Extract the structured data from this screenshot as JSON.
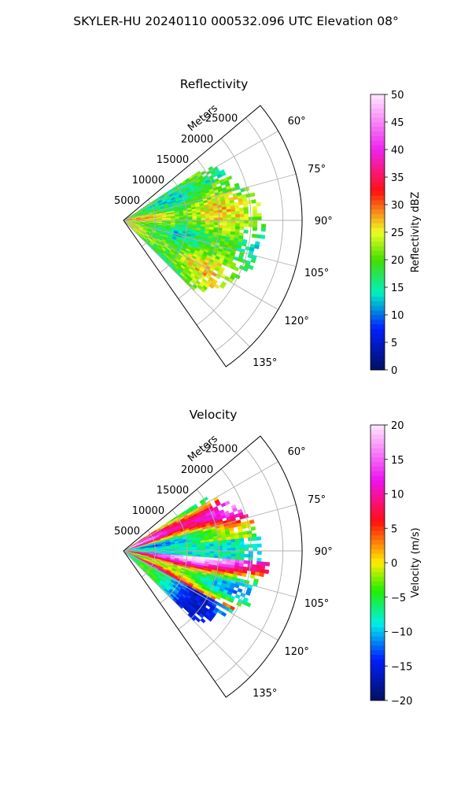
{
  "figure": {
    "suptitle": "SKYLER-HU  20240110  000532.096 UTC Elevation 08°"
  },
  "chart_data": [
    {
      "type": "heatmap",
      "projection": "polar sector (PPI)",
      "title": "Reflectivity",
      "range_axis": {
        "label": "Meters",
        "ticks": [
          5000,
          10000,
          15000,
          20000,
          25000
        ],
        "tick_labels": [
          "5000",
          "10000",
          "15000",
          "20000",
          "25000"
        ],
        "max": 28000
      },
      "azimuth_axis": {
        "range_deg": [
          50,
          145
        ],
        "ticks_deg": [
          60,
          75,
          90,
          105,
          120,
          135
        ],
        "tick_labels": [
          "60°",
          "75°",
          "90°",
          "105°",
          "120°",
          "135°"
        ]
      },
      "grid": true,
      "colorbar": {
        "label": "Reflectivity dBZ",
        "range": [
          0,
          50
        ],
        "ticks": [
          0,
          5,
          10,
          15,
          20,
          25,
          30,
          35,
          40,
          45,
          50
        ],
        "tick_labels": [
          "0",
          "5",
          "10",
          "15",
          "20",
          "25",
          "30",
          "35",
          "40",
          "45",
          "50"
        ]
      },
      "field_summary": {
        "data_azimuth_deg": [
          57,
          135
        ],
        "data_range_m": [
          0,
          23000
        ],
        "dominant_value_range": [
          15,
          28
        ],
        "peak_value_approx": 30
      },
      "colors": {
        "low": "#001060",
        "mid_cyan": "#00f0c0",
        "green": "#44dd00",
        "yellow": "#eeff22",
        "red": "#ff1010",
        "magenta": "#ee22ee",
        "high": "#ffe8ff"
      }
    },
    {
      "type": "heatmap",
      "projection": "polar sector (PPI)",
      "title": "Velocity",
      "range_axis": {
        "label": "Meters",
        "ticks": [
          5000,
          10000,
          15000,
          20000,
          25000
        ],
        "tick_labels": [
          "5000",
          "10000",
          "15000",
          "20000",
          "25000"
        ],
        "max": 28000
      },
      "azimuth_axis": {
        "range_deg": [
          50,
          145
        ],
        "ticks_deg": [
          60,
          75,
          90,
          105,
          120,
          135
        ],
        "tick_labels": [
          "60°",
          "75°",
          "90°",
          "105°",
          "120°",
          "135°"
        ]
      },
      "grid": true,
      "colorbar": {
        "label": "Velocity (m/s)",
        "range": [
          -20,
          20
        ],
        "ticks": [
          -20,
          -15,
          -10,
          -5,
          0,
          5,
          10,
          15,
          20
        ],
        "tick_labels": [
          "−20",
          "−15",
          "−10",
          "−5",
          "0",
          "5",
          "10",
          "15",
          "20"
        ]
      },
      "field_summary": {
        "data_azimuth_deg": [
          57,
          135
        ],
        "data_range_m": [
          0,
          23000
        ],
        "value_range": [
          -15,
          20
        ],
        "pattern": "aliased radial bands: magenta/red near 60-80° and 95-110°, cyan/green near 85-95° and 115-130°"
      },
      "colors": {
        "low": "#001060",
        "mid_cyan": "#00f0e8",
        "green": "#22ee00",
        "yellow": "#ffee00",
        "red": "#ff1010",
        "magenta": "#ee11ee",
        "high": "#ffe8ff"
      }
    }
  ]
}
